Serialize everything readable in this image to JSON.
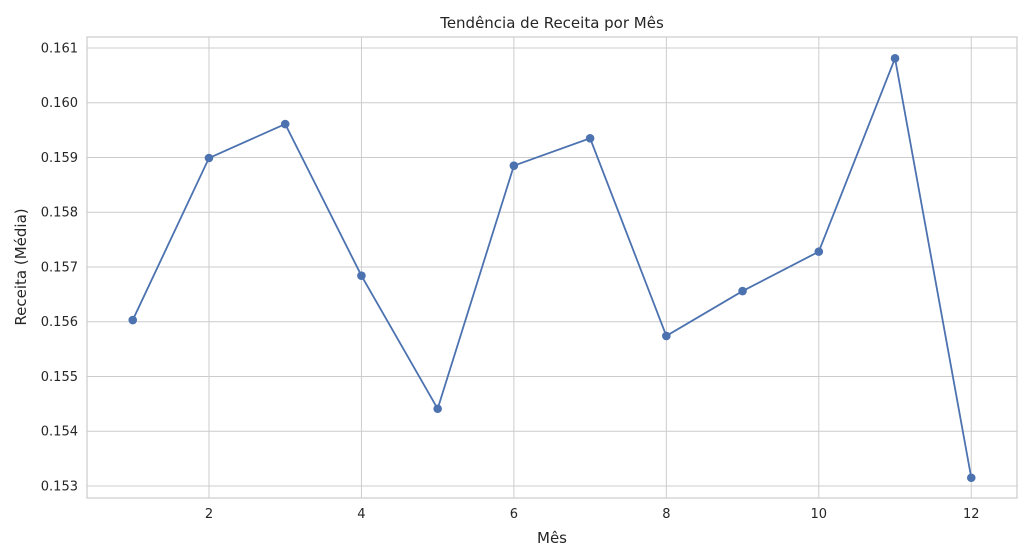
{
  "chart_data": {
    "type": "line",
    "title": "Tendência de Receita por Mês",
    "xlabel": "Mês",
    "ylabel": "Receita (Média)",
    "x": [
      1,
      2,
      3,
      4,
      5,
      6,
      7,
      8,
      9,
      10,
      11,
      12
    ],
    "series": [
      {
        "values": [
          0.15603,
          0.15899,
          0.15961,
          0.15684,
          0.15441,
          0.15885,
          0.15935,
          0.15574,
          0.15656,
          0.15728,
          0.16081,
          0.15315
        ],
        "color": "#4c72b0",
        "marker": "circle"
      }
    ],
    "xlim": [
      0.4,
      12.6
    ],
    "ylim": [
      0.15278,
      0.1612
    ],
    "xticks": [
      2,
      4,
      6,
      8,
      10,
      12
    ],
    "yticks": [
      0.153,
      0.154,
      0.155,
      0.156,
      0.157,
      0.158,
      0.159,
      0.16,
      0.161
    ],
    "ytick_labels": [
      "0.153",
      "0.154",
      "0.155",
      "0.156",
      "0.157",
      "0.158",
      "0.159",
      "0.160",
      "0.161"
    ],
    "grid": true,
    "legend": "none"
  }
}
